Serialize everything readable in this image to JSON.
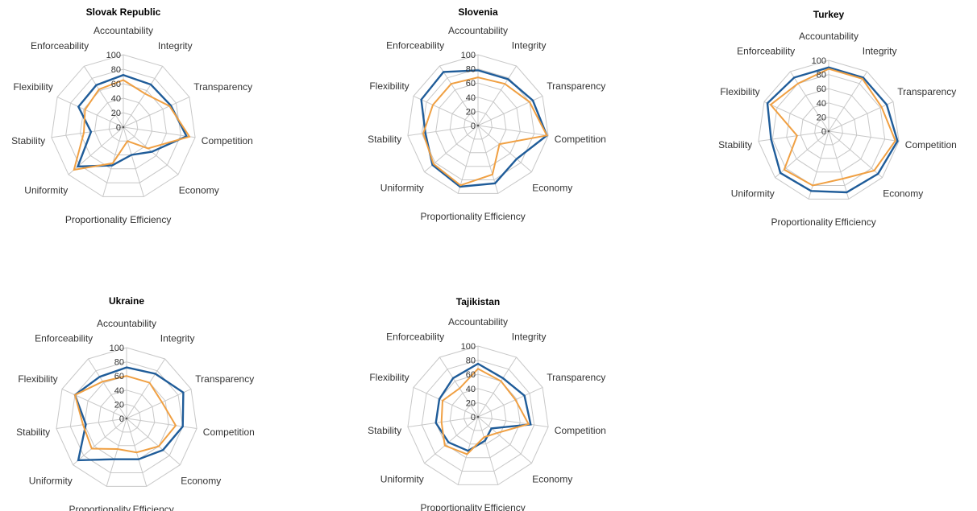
{
  "colors": {
    "blue": "#1f5c99",
    "orange": "#f0a043",
    "grid": "#c8c8c8"
  },
  "chart_data": [
    {
      "type": "radar",
      "title": "Slovak Republic",
      "categories": [
        "Accountability",
        "Integrity",
        "Transparency",
        "Competition",
        "Economy",
        "Efficiency",
        "Proportionality",
        "Uniformity",
        "Stability",
        "Flexibility",
        "Enforceability"
      ],
      "ticks": [
        "0",
        "20",
        "40",
        "60",
        "80",
        "100"
      ],
      "rlim": [
        0,
        100
      ],
      "series": [
        {
          "color": "blue",
          "values": [
            72,
            70,
            72,
            88,
            52,
            40,
            55,
            83,
            45,
            68,
            69
          ]
        },
        {
          "color": "orange",
          "values": [
            65,
            55,
            70,
            92,
            45,
            20,
            52,
            90,
            55,
            58,
            62
          ]
        }
      ]
    },
    {
      "type": "radar",
      "title": "Slovenia",
      "categories": [
        "Accountability",
        "Integrity",
        "Transparency",
        "Competition",
        "Economy",
        "Efficiency",
        "Proportionality",
        "Uniformity",
        "Stability",
        "Flexibility",
        "Enforceability"
      ],
      "ticks": [
        "0",
        "20",
        "40",
        "60",
        "80",
        "100"
      ],
      "rlim": [
        0,
        100
      ],
      "series": [
        {
          "color": "blue",
          "values": [
            78,
            78,
            85,
            98,
            72,
            85,
            90,
            85,
            75,
            88,
            90
          ]
        },
        {
          "color": "orange",
          "values": [
            68,
            70,
            80,
            98,
            40,
            72,
            88,
            83,
            78,
            70,
            70
          ]
        }
      ]
    },
    {
      "type": "radar",
      "title": "Turkey",
      "categories": [
        "Accountability",
        "Integrity",
        "Transparency",
        "Competition",
        "Economy",
        "Efficiency",
        "Proportionality",
        "Uniformity",
        "Stability",
        "Flexibility",
        "Enforceability"
      ],
      "ticks": [
        "0",
        "20",
        "40",
        "60",
        "80",
        "100"
      ],
      "rlim": [
        0,
        100
      ],
      "series": [
        {
          "color": "blue",
          "values": [
            90,
            90,
            90,
            98,
            92,
            90,
            88,
            90,
            82,
            95,
            90
          ]
        },
        {
          "color": "orange",
          "values": [
            88,
            88,
            82,
            95,
            85,
            70,
            80,
            83,
            45,
            90,
            80
          ]
        }
      ]
    },
    {
      "type": "radar",
      "title": "Ukraine",
      "categories": [
        "Accountability",
        "Integrity",
        "Transparency",
        "Competition",
        "Economy",
        "Efficiency",
        "Proportionality",
        "Uniformity",
        "Stability",
        "Flexibility",
        "Enforceability"
      ],
      "ticks": [
        "0",
        "20",
        "40",
        "60",
        "80",
        "100"
      ],
      "rlim": [
        0,
        100
      ],
      "series": [
        {
          "color": "blue",
          "values": [
            72,
            75,
            88,
            80,
            68,
            60,
            60,
            90,
            58,
            80,
            70
          ]
        },
        {
          "color": "orange",
          "values": [
            60,
            60,
            55,
            70,
            60,
            50,
            45,
            65,
            62,
            80,
            62
          ]
        }
      ]
    },
    {
      "type": "radar",
      "title": "Tajikistan",
      "categories": [
        "Accountability",
        "Integrity",
        "Transparency",
        "Competition",
        "Economy",
        "Efficiency",
        "Proportionality",
        "Uniformity",
        "Stability",
        "Flexibility",
        "Enforceability"
      ],
      "ticks": [
        "0",
        "20",
        "40",
        "60",
        "80",
        "100"
      ],
      "rlim": [
        0,
        100
      ],
      "series": [
        {
          "color": "blue",
          "values": [
            75,
            65,
            72,
            75,
            25,
            35,
            50,
            55,
            60,
            60,
            65
          ]
        },
        {
          "color": "orange",
          "values": [
            68,
            60,
            58,
            72,
            35,
            30,
            55,
            62,
            52,
            55,
            48
          ]
        }
      ]
    }
  ]
}
